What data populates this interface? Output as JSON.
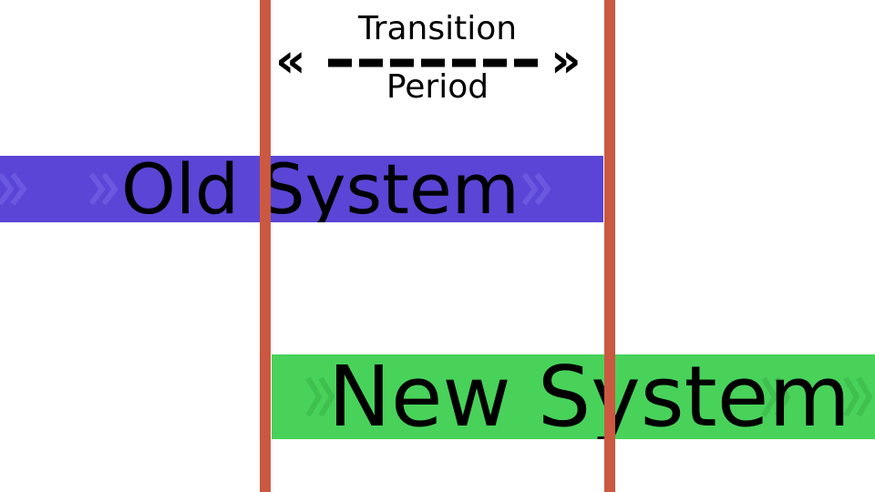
{
  "colors": {
    "marker_line": "#cb5840",
    "old_system_bar": "#5a45d6",
    "old_system_chevron": "#6b58e0",
    "new_system_bar": "#48d25a",
    "new_system_chevron": "#3fc04f",
    "text": "#000000"
  },
  "transition": {
    "label_top": "Transition",
    "label_bottom": "Period",
    "arrow_left": "«",
    "arrow_right": "»"
  },
  "bars": {
    "old_system": {
      "label": "Old System"
    },
    "new_system": {
      "label": "New System"
    }
  },
  "icons": {
    "chevron": "chevron-right-icon",
    "arrow_left": "double-chevron-left-icon",
    "arrow_right": "double-chevron-right-icon"
  }
}
